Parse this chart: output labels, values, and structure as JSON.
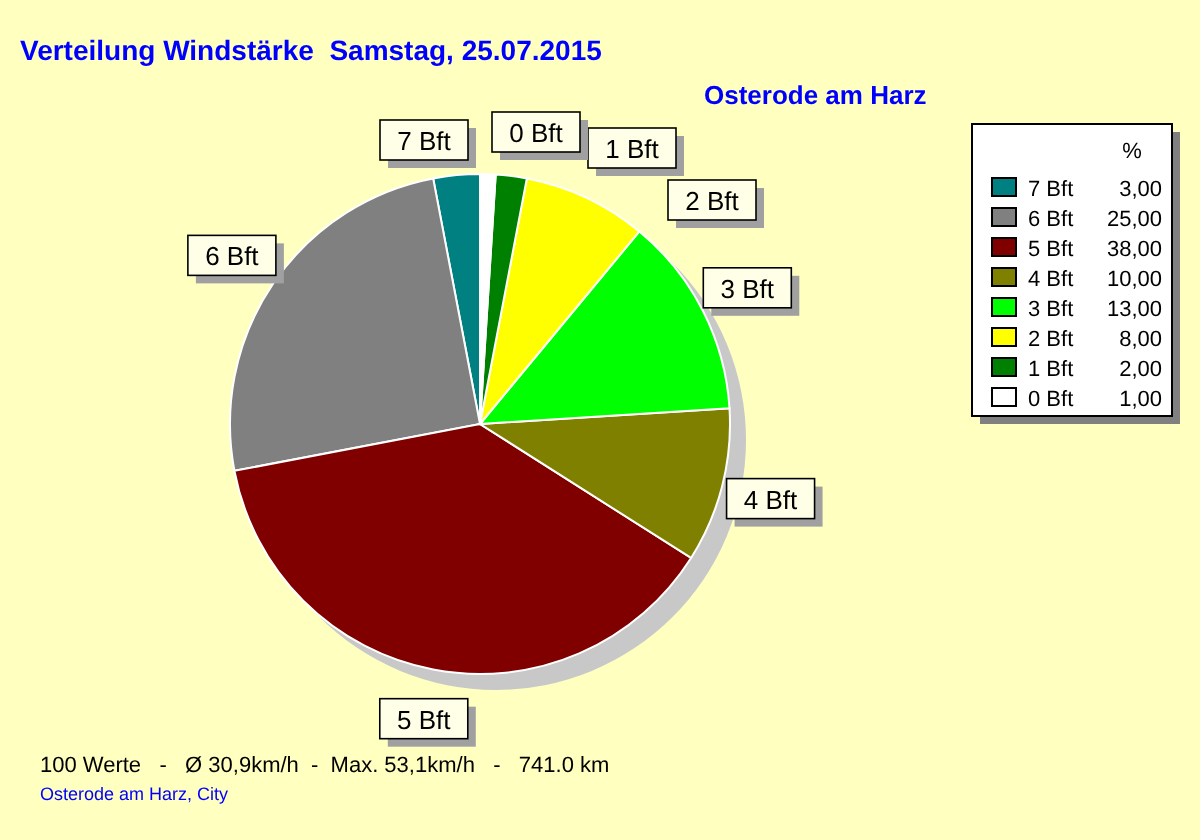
{
  "chart_data": {
    "type": "pie",
    "title": "Verteilung Windstärke  Samstag, 25.07.2015",
    "subtitle": "Osterode am Harz",
    "legend_title": "%",
    "legend": "top right",
    "categories": [
      "7 Bft",
      "6 Bft",
      "5 Bft",
      "4 Bft",
      "3 Bft",
      "2 Bft",
      "1 Bft",
      "0 Bft"
    ],
    "values": [
      3,
      25,
      38,
      10,
      13,
      8,
      2,
      1
    ],
    "value_labels": [
      "3,00",
      "25,00",
      "38,00",
      "10,00",
      "13,00",
      "8,00",
      "2,00",
      "1,00"
    ],
    "colors": [
      "#008080",
      "#808080",
      "#800000",
      "#808000",
      "#00ff00",
      "#ffff00",
      "#008000",
      "#ffffff"
    ],
    "annotations": [
      "100 Werte   -   Ø 30,9km/h  -  Max. 53,1km/h   -   741.0 km",
      "Osterode am Harz, City"
    ]
  }
}
